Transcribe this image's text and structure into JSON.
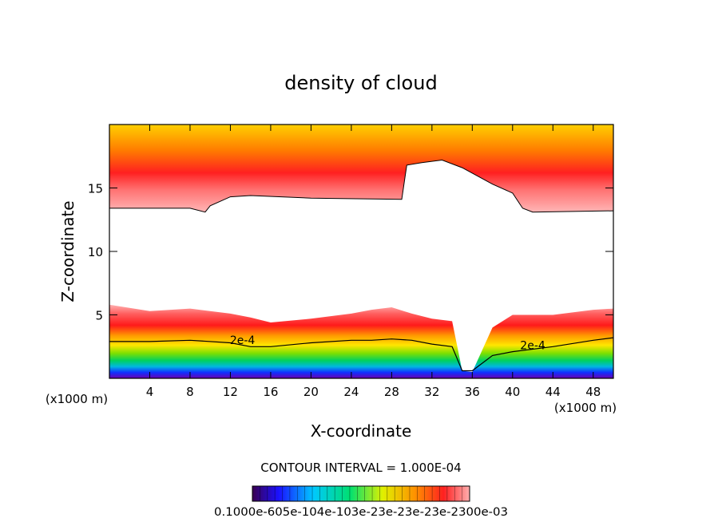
{
  "chart_data": {
    "type": "heatmap",
    "title": "density of cloud",
    "xlabel": "X-coordinate",
    "ylabel": "Z-coordinate",
    "x_unit": "(x1000 m)",
    "xlim": [
      0,
      50
    ],
    "ylim": [
      0,
      20
    ],
    "x_ticks": [
      4,
      8,
      12,
      16,
      20,
      24,
      28,
      32,
      36,
      40,
      44,
      48
    ],
    "y_ticks": [
      5,
      10,
      15
    ],
    "contour_interval_text": "CONTOUR INTERVAL = 1.000E-04",
    "contour_labels": [
      {
        "text": "2e-4",
        "x": 13.2,
        "z": 2.7
      },
      {
        "text": "2e-4",
        "x": 42.0,
        "z": 2.3
      }
    ],
    "upper_layer": {
      "description_values": "cloud base height (km) along x",
      "x": [
        0,
        8,
        9.5,
        10,
        12,
        14,
        20,
        29,
        29.5,
        31,
        33,
        35,
        38,
        40,
        41,
        42,
        50
      ],
      "base_z": [
        13.4,
        13.4,
        13.1,
        13.6,
        14.3,
        14.4,
        14.2,
        14.1,
        16.8,
        17.0,
        17.2,
        16.6,
        15.3,
        14.6,
        13.4,
        13.1,
        13.2
      ]
    },
    "lower_layer": {
      "description_values": "cloud top height (km) along x",
      "x": [
        0,
        4,
        8,
        12,
        14,
        16,
        20,
        24,
        26,
        28,
        30,
        32,
        34,
        35,
        36,
        38,
        40,
        44,
        48,
        50
      ],
      "top_z": [
        5.8,
        5.3,
        5.5,
        5.1,
        4.8,
        4.4,
        4.7,
        5.1,
        5.4,
        5.6,
        5.1,
        4.7,
        4.5,
        0.6,
        0.5,
        4.0,
        5.0,
        5.0,
        5.4,
        5.5
      ],
      "contour_2e4_z": [
        2.9,
        2.9,
        3.0,
        2.8,
        2.5,
        2.5,
        2.8,
        3.0,
        3.0,
        3.1,
        3.0,
        2.7,
        2.5,
        0.6,
        0.6,
        1.8,
        2.1,
        2.5,
        3.0,
        3.2
      ]
    },
    "colorbar": {
      "min": 0.0001,
      "max": 0.003,
      "tick_text": "0.1000e-605e-104e-103e-23e-23e-23e-2300e-03"
    }
  }
}
